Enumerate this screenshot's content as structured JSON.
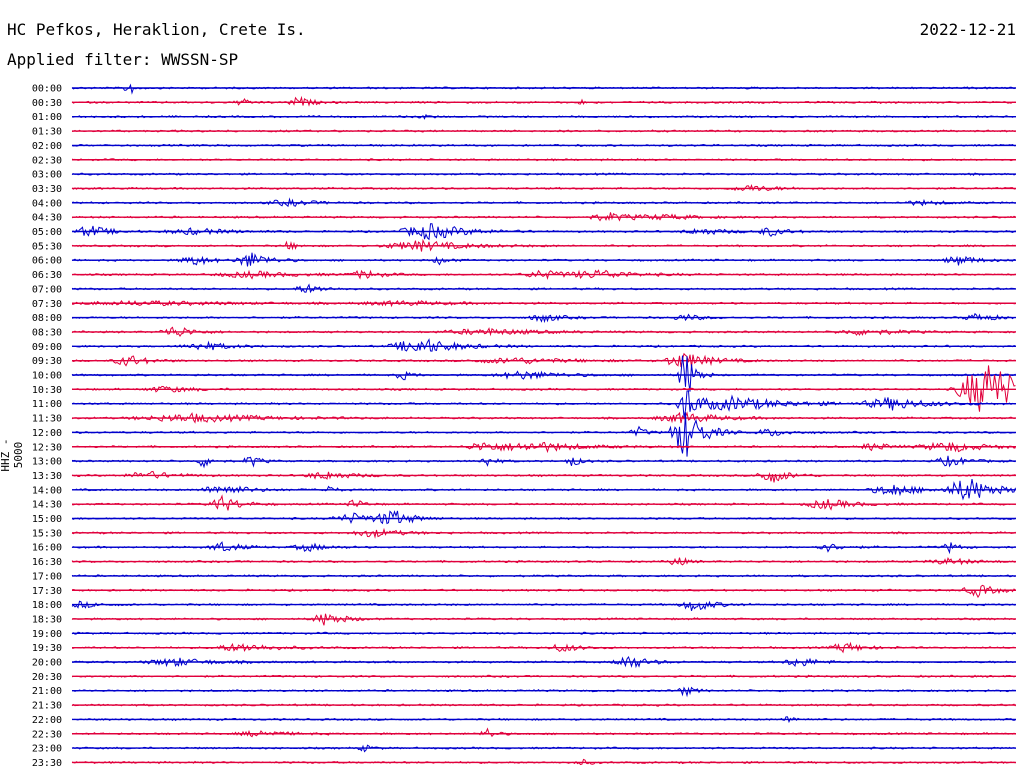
{
  "header": {
    "station": "HC Pefkos, Heraklion, Crete Is.",
    "filter": "Applied filter: WWSSN-SP",
    "date": "2022-12-21",
    "channel": "HHZ - 5000"
  },
  "colors": {
    "even_trace": "#0000cc",
    "odd_trace": "#e0003c",
    "background": "#ffffff"
  },
  "chart_data": {
    "type": "line",
    "rows": [
      "00:00",
      "00:30",
      "01:00",
      "01:30",
      "02:00",
      "02:30",
      "03:00",
      "03:30",
      "04:00",
      "04:30",
      "05:00",
      "05:30",
      "06:00",
      "06:30",
      "07:00",
      "07:30",
      "08:00",
      "08:30",
      "09:00",
      "09:30",
      "10:00",
      "10:30",
      "11:00",
      "11:30",
      "12:00",
      "12:30",
      "13:00",
      "13:30",
      "14:00",
      "14:30",
      "15:00",
      "15:30",
      "16:00",
      "16:30",
      "17:00",
      "17:30",
      "18:00",
      "18:30",
      "19:00",
      "19:30",
      "20:00",
      "20:30",
      "21:00",
      "21:30",
      "22:00",
      "22:30",
      "23:00",
      "23:30"
    ],
    "row_minutes": 30,
    "events": [
      {
        "row": 0,
        "t": 0.06,
        "amp": 9,
        "len": 0.006
      },
      {
        "row": 1,
        "t": 0.18,
        "amp": 3,
        "len": 0.012
      },
      {
        "row": 1,
        "t": 0.24,
        "amp": 5,
        "len": 0.015
      },
      {
        "row": 1,
        "t": 0.54,
        "amp": 2,
        "len": 0.008
      },
      {
        "row": 2,
        "t": 0.37,
        "amp": 2,
        "len": 0.01
      },
      {
        "row": 7,
        "t": 0.72,
        "amp": 3,
        "len": 0.03
      },
      {
        "row": 8,
        "t": 0.23,
        "amp": 3,
        "len": 0.03
      },
      {
        "row": 8,
        "t": 0.9,
        "amp": 2,
        "len": 0.03
      },
      {
        "row": 9,
        "t": 0.57,
        "amp": 4,
        "len": 0.03
      },
      {
        "row": 9,
        "t": 0.63,
        "amp": 2,
        "len": 0.04
      },
      {
        "row": 10,
        "t": 0.02,
        "amp": 6,
        "len": 0.02
      },
      {
        "row": 10,
        "t": 0.13,
        "amp": 3,
        "len": 0.04
      },
      {
        "row": 10,
        "t": 0.38,
        "amp": 8,
        "len": 0.04
      },
      {
        "row": 10,
        "t": 0.67,
        "amp": 3,
        "len": 0.03
      },
      {
        "row": 10,
        "t": 0.74,
        "amp": 4,
        "len": 0.02
      },
      {
        "row": 11,
        "t": 0.37,
        "amp": 5,
        "len": 0.05
      },
      {
        "row": 11,
        "t": 0.23,
        "amp": 4,
        "len": 0.01
      },
      {
        "row": 12,
        "t": 0.13,
        "amp": 5,
        "len": 0.02
      },
      {
        "row": 12,
        "t": 0.19,
        "amp": 8,
        "len": 0.02
      },
      {
        "row": 12,
        "t": 0.39,
        "amp": 4,
        "len": 0.01
      },
      {
        "row": 12,
        "t": 0.94,
        "amp": 5,
        "len": 0.02
      },
      {
        "row": 13,
        "t": 0.19,
        "amp": 3,
        "len": 0.05
      },
      {
        "row": 13,
        "t": 0.31,
        "amp": 4,
        "len": 0.02
      },
      {
        "row": 13,
        "t": 0.5,
        "amp": 4,
        "len": 0.03
      },
      {
        "row": 13,
        "t": 0.56,
        "amp": 4,
        "len": 0.04
      },
      {
        "row": 14,
        "t": 0.25,
        "amp": 4,
        "len": 0.02
      },
      {
        "row": 15,
        "t": 0.35,
        "amp": 2,
        "len": 0.06
      },
      {
        "row": 15,
        "t": 0.08,
        "amp": 2,
        "len": 0.1
      },
      {
        "row": 16,
        "t": 0.5,
        "amp": 4,
        "len": 0.02
      },
      {
        "row": 16,
        "t": 0.65,
        "amp": 3,
        "len": 0.02
      },
      {
        "row": 16,
        "t": 0.96,
        "amp": 4,
        "len": 0.02
      },
      {
        "row": 17,
        "t": 0.11,
        "amp": 6,
        "len": 0.02
      },
      {
        "row": 17,
        "t": 0.44,
        "amp": 3,
        "len": 0.06
      },
      {
        "row": 17,
        "t": 0.84,
        "amp": 3,
        "len": 0.04
      },
      {
        "row": 18,
        "t": 0.14,
        "amp": 4,
        "len": 0.03
      },
      {
        "row": 18,
        "t": 0.37,
        "amp": 8,
        "len": 0.04
      },
      {
        "row": 19,
        "t": 0.06,
        "amp": 6,
        "len": 0.02
      },
      {
        "row": 19,
        "t": 0.47,
        "amp": 3,
        "len": 0.06
      },
      {
        "row": 19,
        "t": 0.65,
        "amp": 8,
        "len": 0.03
      },
      {
        "row": 20,
        "t": 0.35,
        "amp": 5,
        "len": 0.01
      },
      {
        "row": 20,
        "t": 0.48,
        "amp": 4,
        "len": 0.04
      },
      {
        "row": 20,
        "t": 0.65,
        "amp": 30,
        "len": 0.01
      },
      {
        "row": 21,
        "t": 0.1,
        "amp": 3,
        "len": 0.03
      },
      {
        "row": 21,
        "t": 0.97,
        "amp": 28,
        "len": 0.04
      },
      {
        "row": 22,
        "t": 0.7,
        "amp": 7,
        "len": 0.06
      },
      {
        "row": 22,
        "t": 0.87,
        "amp": 6,
        "len": 0.04
      },
      {
        "row": 22,
        "t": 0.65,
        "amp": 20,
        "len": 0.01
      },
      {
        "row": 23,
        "t": 0.13,
        "amp": 4,
        "len": 0.08
      },
      {
        "row": 23,
        "t": 0.65,
        "amp": 5,
        "len": 0.04
      },
      {
        "row": 24,
        "t": 0.65,
        "amp": 26,
        "len": 0.02
      },
      {
        "row": 24,
        "t": 0.6,
        "amp": 5,
        "len": 0.01
      },
      {
        "row": 24,
        "t": 0.74,
        "amp": 4,
        "len": 0.02
      },
      {
        "row": 25,
        "t": 0.44,
        "amp": 5,
        "len": 0.03
      },
      {
        "row": 25,
        "t": 0.5,
        "amp": 4,
        "len": 0.05
      },
      {
        "row": 25,
        "t": 0.85,
        "amp": 4,
        "len": 0.02
      },
      {
        "row": 25,
        "t": 0.93,
        "amp": 5,
        "len": 0.04
      },
      {
        "row": 26,
        "t": 0.14,
        "amp": 6,
        "len": 0.01
      },
      {
        "row": 26,
        "t": 0.19,
        "amp": 6,
        "len": 0.01
      },
      {
        "row": 26,
        "t": 0.44,
        "amp": 5,
        "len": 0.01
      },
      {
        "row": 26,
        "t": 0.53,
        "amp": 5,
        "len": 0.01
      },
      {
        "row": 26,
        "t": 0.93,
        "amp": 5,
        "len": 0.02
      },
      {
        "row": 27,
        "t": 0.08,
        "amp": 4,
        "len": 0.03
      },
      {
        "row": 27,
        "t": 0.27,
        "amp": 4,
        "len": 0.03
      },
      {
        "row": 27,
        "t": 0.74,
        "amp": 8,
        "len": 0.02
      },
      {
        "row": 28,
        "t": 0.16,
        "amp": 5,
        "len": 0.03
      },
      {
        "row": 28,
        "t": 0.27,
        "amp": 4,
        "len": 0.01
      },
      {
        "row": 28,
        "t": 0.87,
        "amp": 6,
        "len": 0.03
      },
      {
        "row": 28,
        "t": 0.95,
        "amp": 12,
        "len": 0.03
      },
      {
        "row": 29,
        "t": 0.16,
        "amp": 8,
        "len": 0.02
      },
      {
        "row": 29,
        "t": 0.3,
        "amp": 5,
        "len": 0.01
      },
      {
        "row": 29,
        "t": 0.8,
        "amp": 5,
        "len": 0.03
      },
      {
        "row": 30,
        "t": 0.3,
        "amp": 5,
        "len": 0.03
      },
      {
        "row": 30,
        "t": 0.34,
        "amp": 8,
        "len": 0.02
      },
      {
        "row": 31,
        "t": 0.32,
        "amp": 4,
        "len": 0.03
      },
      {
        "row": 32,
        "t": 0.16,
        "amp": 5,
        "len": 0.02
      },
      {
        "row": 32,
        "t": 0.25,
        "amp": 4,
        "len": 0.02
      },
      {
        "row": 32,
        "t": 0.8,
        "amp": 4,
        "len": 0.02
      },
      {
        "row": 32,
        "t": 0.93,
        "amp": 5,
        "len": 0.01
      },
      {
        "row": 33,
        "t": 0.64,
        "amp": 6,
        "len": 0.01
      },
      {
        "row": 33,
        "t": 0.93,
        "amp": 3,
        "len": 0.03
      },
      {
        "row": 35,
        "t": 0.96,
        "amp": 6,
        "len": 0.02
      },
      {
        "row": 36,
        "t": 0.66,
        "amp": 7,
        "len": 0.02
      },
      {
        "row": 36,
        "t": 0.01,
        "amp": 3,
        "len": 0.02
      },
      {
        "row": 37,
        "t": 0.27,
        "amp": 7,
        "len": 0.02
      },
      {
        "row": 39,
        "t": 0.18,
        "amp": 4,
        "len": 0.04
      },
      {
        "row": 39,
        "t": 0.52,
        "amp": 4,
        "len": 0.02
      },
      {
        "row": 39,
        "t": 0.82,
        "amp": 5,
        "len": 0.02
      },
      {
        "row": 40,
        "t": 0.11,
        "amp": 4,
        "len": 0.04
      },
      {
        "row": 40,
        "t": 0.59,
        "amp": 7,
        "len": 0.02
      },
      {
        "row": 40,
        "t": 0.77,
        "amp": 5,
        "len": 0.02
      },
      {
        "row": 42,
        "t": 0.65,
        "amp": 5,
        "len": 0.01
      },
      {
        "row": 44,
        "t": 0.76,
        "amp": 3,
        "len": 0.01
      },
      {
        "row": 45,
        "t": 0.2,
        "amp": 3,
        "len": 0.03
      },
      {
        "row": 45,
        "t": 0.44,
        "amp": 5,
        "len": 0.01
      },
      {
        "row": 46,
        "t": 0.31,
        "amp": 3,
        "len": 0.01
      },
      {
        "row": 47,
        "t": 0.54,
        "amp": 3,
        "len": 0.01
      }
    ]
  }
}
